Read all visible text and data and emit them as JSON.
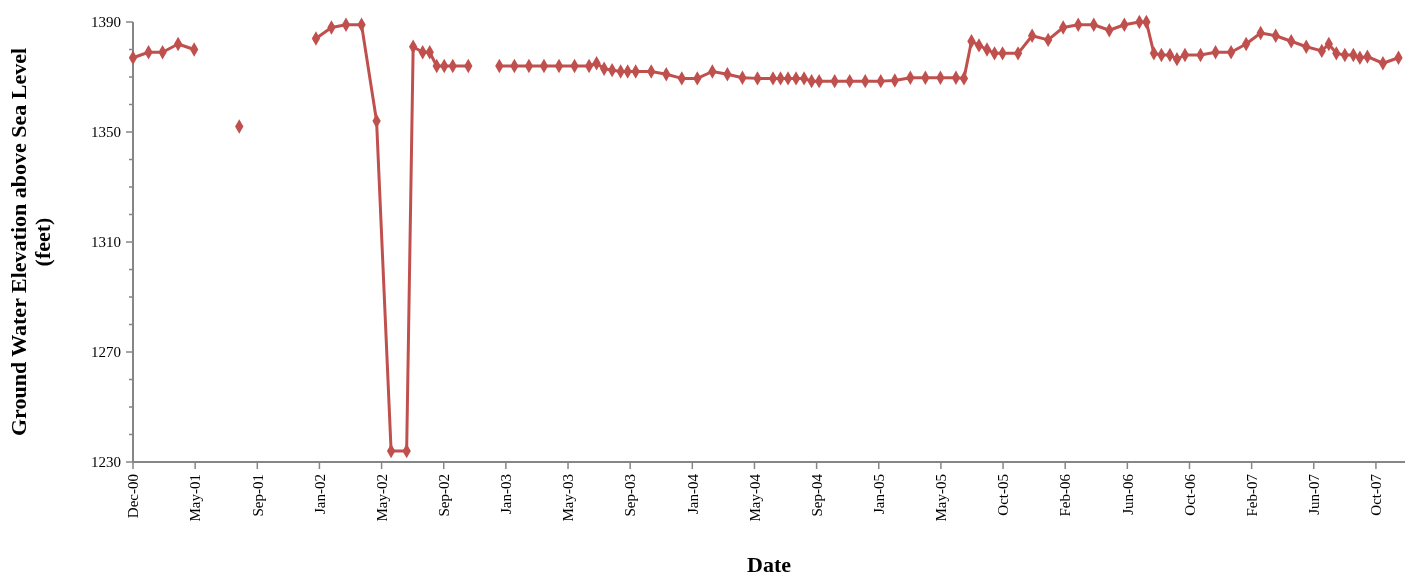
{
  "chart_data": {
    "type": "line",
    "xlabel": "Date",
    "ylabel": "Ground Water Elevation above Sea Level (feet)",
    "x": [
      "2000-12-31",
      "2001-01-31",
      "2001-02-28",
      "2001-03-31",
      "2001-05-02",
      "2001-06-15",
      "2001-07-31",
      "2001-10-15",
      "2001-12-31",
      "2002-01-31",
      "2002-03-01",
      "2002-04-01",
      "2002-05-01",
      "2002-05-30",
      "2002-06-30",
      "2002-07-13",
      "2002-08-01",
      "2002-08-15",
      "2002-08-29",
      "2002-09-13",
      "2002-09-30",
      "2002-10-31",
      "2002-12-01",
      "2003-01-01",
      "2003-01-31",
      "2003-03-01",
      "2003-03-31",
      "2003-04-30",
      "2003-05-31",
      "2003-06-29",
      "2003-07-14",
      "2003-07-29",
      "2003-08-14",
      "2003-08-31",
      "2003-09-14",
      "2003-09-30",
      "2003-10-31",
      "2003-11-30",
      "2003-12-31",
      "2004-01-31",
      "2004-03-01",
      "2004-03-31",
      "2004-04-30",
      "2004-05-30",
      "2004-06-30",
      "2004-07-15",
      "2004-07-30",
      "2004-08-15",
      "2004-08-31",
      "2004-09-15",
      "2004-09-30",
      "2004-10-31",
      "2004-11-30",
      "2004-12-31",
      "2005-01-31",
      "2005-02-28",
      "2005-03-31",
      "2005-04-30",
      "2005-05-30",
      "2005-06-30",
      "2005-07-16",
      "2005-07-31",
      "2005-08-15",
      "2005-08-31",
      "2005-09-15",
      "2005-10-01",
      "2005-11-01",
      "2005-11-29",
      "2005-12-31",
      "2006-01-30",
      "2006-03-01",
      "2006-04-01",
      "2006-05-02",
      "2006-06-01",
      "2006-07-01",
      "2006-07-15",
      "2006-07-30",
      "2006-08-14",
      "2006-08-31",
      "2006-09-14",
      "2006-09-30",
      "2006-10-31",
      "2006-11-30",
      "2006-12-31",
      "2007-01-30",
      "2007-02-28",
      "2007-03-30",
      "2007-04-30",
      "2007-05-30",
      "2007-06-30",
      "2007-07-14",
      "2007-07-29",
      "2007-08-15",
      "2007-09-01",
      "2007-09-14",
      "2007-09-29",
      "2007-10-30",
      "2007-11-30"
    ],
    "series": [
      {
        "color": "#c0504d",
        "values": [
          1377,
          1379,
          1379,
          1382,
          1380,
          null,
          1352,
          null,
          1384,
          1388,
          1389,
          1389,
          1354,
          1234,
          1234,
          1381,
          1379,
          1379,
          1374,
          1374,
          1374,
          1374,
          null,
          1374,
          1374,
          1374,
          1374,
          1374,
          1374,
          1374,
          1375,
          1373,
          1372.5,
          1372,
          1372,
          1372,
          1372,
          1371,
          1369.5,
          1369.5,
          1372,
          1371,
          1369.7,
          1369.5,
          1369.5,
          1369.5,
          1369.5,
          1369.5,
          1369.5,
          1368.5,
          1368.5,
          1368.5,
          1368.5,
          1368.5,
          1368.5,
          1368.7,
          1369.7,
          1369.7,
          1369.7,
          1369.7,
          1369.5,
          1383,
          1381.5,
          1380,
          1378.6,
          1378.6,
          1378.6,
          1385,
          1383.5,
          1388,
          1389,
          1389,
          1387,
          1389,
          1390,
          1390,
          1378.6,
          1378,
          1378,
          1376.5,
          1378,
          1378,
          1379,
          1379,
          1382,
          1386,
          1385,
          1383,
          1381,
          1379.5,
          1382,
          1378.6,
          1378,
          1378,
          1377,
          1377.4,
          1375,
          1377
        ]
      }
    ],
    "xlim": [
      "2000-12-31",
      "2007-12-13"
    ],
    "xticks": [
      {
        "value": "2000-12-31",
        "label": "Dec-00"
      },
      {
        "value": "2001-05-04",
        "label": "May-01"
      },
      {
        "value": "2001-09-05",
        "label": "Sep-01"
      },
      {
        "value": "2002-01-07",
        "label": "Jan-02"
      },
      {
        "value": "2002-05-11",
        "label": "May-02"
      },
      {
        "value": "2002-09-12",
        "label": "Sep-02"
      },
      {
        "value": "2003-01-14",
        "label": "Jan-03"
      },
      {
        "value": "2003-05-18",
        "label": "May-03"
      },
      {
        "value": "2003-09-19",
        "label": "Sep-03"
      },
      {
        "value": "2004-01-21",
        "label": "Jan-04"
      },
      {
        "value": "2004-05-24",
        "label": "May-04"
      },
      {
        "value": "2004-09-25",
        "label": "Sep-04"
      },
      {
        "value": "2005-01-27",
        "label": "Jan-05"
      },
      {
        "value": "2005-05-31",
        "label": "May-05"
      },
      {
        "value": "2005-10-02",
        "label": "Oct-05"
      },
      {
        "value": "2006-02-03",
        "label": "Feb-06"
      },
      {
        "value": "2006-06-07",
        "label": "Jun-06"
      },
      {
        "value": "2006-10-09",
        "label": "Oct-06"
      },
      {
        "value": "2007-02-10",
        "label": "Feb-07"
      },
      {
        "value": "2007-06-14",
        "label": "Jun-07"
      },
      {
        "value": "2007-10-16",
        "label": "Oct-07"
      }
    ],
    "ylim": [
      1230,
      1390
    ],
    "yticks": [
      1230,
      {
        "value": 1240,
        "label": null
      },
      {
        "value": 1250,
        "label": null
      },
      {
        "value": 1260,
        "label": null
      },
      1270,
      {
        "value": 1280,
        "label": null
      },
      {
        "value": 1290,
        "label": null
      },
      {
        "value": 1300,
        "label": null
      },
      1310,
      {
        "value": 1320,
        "label": null
      },
      {
        "value": 1330,
        "label": null
      },
      {
        "value": 1340,
        "label": null
      },
      1350,
      {
        "value": 1360,
        "label": null
      },
      {
        "value": 1370,
        "label": null
      },
      {
        "value": 1380,
        "label": null
      },
      1390
    ],
    "marker": "diamond",
    "line_style": "solid",
    "grid": false
  }
}
